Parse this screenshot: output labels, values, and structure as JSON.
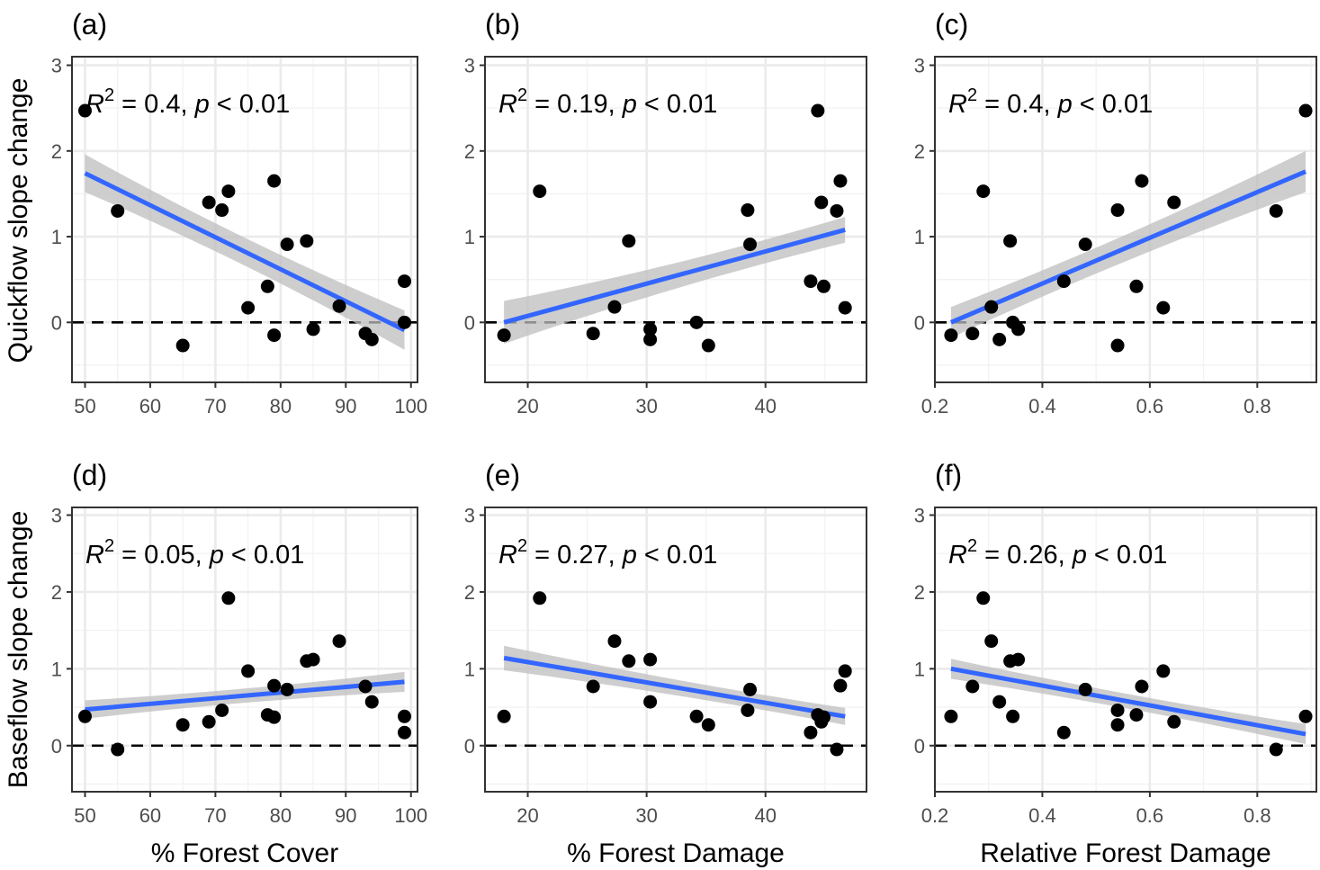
{
  "colors": {
    "fit_line": "#3366ff",
    "ci_band": "#bdbdbd",
    "points": "#000000",
    "grid_major": "#ebebeb",
    "grid_minor": "#f2f2f2",
    "border": "#333333"
  },
  "y_axis_titles": [
    "Quickflow slope change",
    "Baseflow slope change"
  ],
  "x_axis_titles": [
    "% Forest Cover",
    "% Forest Damage",
    "Relative Forest Damage"
  ],
  "chart_data": [
    {
      "type": "scatter",
      "panel": "(a)",
      "r2": "0.4",
      "p": "0.01",
      "xlabel": "",
      "ylabel": "Quickflow slope change",
      "xlim": [
        48,
        101
      ],
      "ylim": [
        -0.7,
        3.1
      ],
      "xticks": [
        50,
        60,
        70,
        80,
        90,
        100
      ],
      "xticklabels": [
        "50",
        "60",
        "70",
        "80",
        "90",
        "100"
      ],
      "yticks": [
        0,
        1,
        2,
        3
      ],
      "yticklabels": [
        "0",
        "1",
        "2",
        "3"
      ],
      "points": [
        [
          50,
          2.47
        ],
        [
          55,
          1.3
        ],
        [
          65,
          -0.27
        ],
        [
          69,
          1.4
        ],
        [
          71,
          1.31
        ],
        [
          72,
          1.53
        ],
        [
          75,
          0.17
        ],
        [
          78,
          0.42
        ],
        [
          79,
          1.65
        ],
        [
          79,
          -0.15
        ],
        [
          81,
          0.91
        ],
        [
          84,
          0.95
        ],
        [
          85,
          -0.08
        ],
        [
          89,
          0.19
        ],
        [
          93,
          -0.13
        ],
        [
          94,
          -0.2
        ],
        [
          99,
          0.48
        ],
        [
          99,
          0.0
        ]
      ],
      "fit": {
        "x": [
          50,
          99
        ],
        "y": [
          1.74,
          -0.09
        ]
      },
      "band_halfwidth": [
        0.22,
        0.1,
        0.23
      ]
    },
    {
      "type": "scatter",
      "panel": "(b)",
      "r2": "0.19",
      "p": "0.01",
      "xlabel": "",
      "ylabel": "",
      "xlim": [
        16.4,
        48.5
      ],
      "ylim": [
        -0.7,
        3.1
      ],
      "xticks": [
        20,
        30,
        40
      ],
      "xticklabels": [
        "20",
        "30",
        "40"
      ],
      "yticks": [
        0,
        1,
        2,
        3
      ],
      "yticklabels": [
        "0",
        "1",
        "2",
        "3"
      ],
      "points": [
        [
          18,
          -0.15
        ],
        [
          21,
          1.53
        ],
        [
          25.5,
          -0.13
        ],
        [
          27.3,
          0.18
        ],
        [
          28.5,
          0.95
        ],
        [
          30.3,
          -0.08
        ],
        [
          30.3,
          -0.2
        ],
        [
          34.2,
          0.0
        ],
        [
          35.2,
          -0.27
        ],
        [
          38.5,
          1.31
        ],
        [
          38.7,
          0.91
        ],
        [
          43.8,
          0.48
        ],
        [
          44.4,
          2.47
        ],
        [
          44.7,
          1.4
        ],
        [
          44.9,
          0.42
        ],
        [
          46,
          1.3
        ],
        [
          46.3,
          1.65
        ],
        [
          46.7,
          0.17
        ]
      ],
      "fit": {
        "x": [
          18,
          46.7
        ],
        "y": [
          0.0,
          1.08
        ]
      },
      "band_halfwidth": [
        0.25,
        0.1,
        0.15
      ]
    },
    {
      "type": "scatter",
      "panel": "(c)",
      "r2": "0.4",
      "p": "0.01",
      "xlabel": "",
      "ylabel": "",
      "xlim": [
        0.2,
        0.91
      ],
      "ylim": [
        -0.7,
        3.1
      ],
      "xticks": [
        0.2,
        0.4,
        0.6,
        0.8
      ],
      "xticklabels": [
        "0.2",
        "0.4",
        "0.6",
        "0.8"
      ],
      "yticks": [
        0,
        1,
        2,
        3
      ],
      "yticklabels": [
        "0",
        "1",
        "2",
        "3"
      ],
      "points": [
        [
          0.23,
          -0.15
        ],
        [
          0.27,
          -0.13
        ],
        [
          0.29,
          1.53
        ],
        [
          0.305,
          0.18
        ],
        [
          0.32,
          -0.2
        ],
        [
          0.34,
          0.95
        ],
        [
          0.345,
          0.0
        ],
        [
          0.355,
          -0.08
        ],
        [
          0.44,
          0.48
        ],
        [
          0.48,
          0.91
        ],
        [
          0.54,
          1.31
        ],
        [
          0.54,
          -0.27
        ],
        [
          0.575,
          0.42
        ],
        [
          0.585,
          1.65
        ],
        [
          0.625,
          0.17
        ],
        [
          0.645,
          1.4
        ],
        [
          0.835,
          1.3
        ],
        [
          0.89,
          2.47
        ]
      ],
      "fit": {
        "x": [
          0.23,
          0.89
        ],
        "y": [
          0.0,
          1.76
        ]
      },
      "band_halfwidth": [
        0.18,
        0.1,
        0.24
      ]
    },
    {
      "type": "scatter",
      "panel": "(d)",
      "r2": "0.05",
      "p": "0.01",
      "xlabel": "% Forest Cover",
      "ylabel": "Baseflow slope change",
      "xlim": [
        48,
        101
      ],
      "ylim": [
        -0.6,
        3.1
      ],
      "xticks": [
        50,
        60,
        70,
        80,
        90,
        100
      ],
      "xticklabels": [
        "50",
        "60",
        "70",
        "80",
        "90",
        "100"
      ],
      "yticks": [
        0,
        1,
        2,
        3
      ],
      "yticklabels": [
        "0",
        "1",
        "2",
        "3"
      ],
      "points": [
        [
          50,
          0.38
        ],
        [
          55,
          -0.05
        ],
        [
          65,
          0.27
        ],
        [
          69,
          0.31
        ],
        [
          71,
          0.46
        ],
        [
          72,
          1.92
        ],
        [
          75,
          0.97
        ],
        [
          78,
          0.4
        ],
        [
          79,
          0.78
        ],
        [
          79,
          0.37
        ],
        [
          81,
          0.73
        ],
        [
          84,
          1.1
        ],
        [
          85,
          1.12
        ],
        [
          89,
          1.36
        ],
        [
          93,
          0.77
        ],
        [
          94,
          0.57
        ],
        [
          99,
          0.38
        ],
        [
          99,
          0.17
        ]
      ],
      "fit": {
        "x": [
          50,
          99
        ],
        "y": [
          0.47,
          0.83
        ]
      },
      "band_halfwidth": [
        0.12,
        0.06,
        0.13
      ]
    },
    {
      "type": "scatter",
      "panel": "(e)",
      "r2": "0.27",
      "p": "0.01",
      "xlabel": "% Forest Damage",
      "ylabel": "",
      "xlim": [
        16.4,
        48.5
      ],
      "ylim": [
        -0.6,
        3.1
      ],
      "xticks": [
        20,
        30,
        40
      ],
      "xticklabels": [
        "20",
        "30",
        "40"
      ],
      "yticks": [
        0,
        1,
        2,
        3
      ],
      "yticklabels": [
        "0",
        "1",
        "2",
        "3"
      ],
      "points": [
        [
          18,
          0.38
        ],
        [
          21,
          1.92
        ],
        [
          25.5,
          0.77
        ],
        [
          27.3,
          1.36
        ],
        [
          28.5,
          1.1
        ],
        [
          30.3,
          1.12
        ],
        [
          30.3,
          0.57
        ],
        [
          34.2,
          0.38
        ],
        [
          35.2,
          0.27
        ],
        [
          38.5,
          0.46
        ],
        [
          38.7,
          0.73
        ],
        [
          43.8,
          0.17
        ],
        [
          44.4,
          0.4
        ],
        [
          44.7,
          0.31
        ],
        [
          44.9,
          0.37
        ],
        [
          46,
          -0.05
        ],
        [
          46.3,
          0.78
        ],
        [
          46.7,
          0.97
        ]
      ],
      "fit": {
        "x": [
          18,
          46.7
        ],
        "y": [
          1.14,
          0.38
        ]
      },
      "band_halfwidth": [
        0.16,
        0.07,
        0.11
      ]
    },
    {
      "type": "scatter",
      "panel": "(f)",
      "r2": "0.26",
      "p": "0.01",
      "xlabel": "Relative Forest Damage",
      "ylabel": "",
      "xlim": [
        0.2,
        0.91
      ],
      "ylim": [
        -0.6,
        3.1
      ],
      "xticks": [
        0.2,
        0.4,
        0.6,
        0.8
      ],
      "xticklabels": [
        "0.2",
        "0.4",
        "0.6",
        "0.8"
      ],
      "yticks": [
        0,
        1,
        2,
        3
      ],
      "yticklabels": [
        "0",
        "1",
        "2",
        "3"
      ],
      "points": [
        [
          0.23,
          0.38
        ],
        [
          0.27,
          0.77
        ],
        [
          0.29,
          1.92
        ],
        [
          0.305,
          1.36
        ],
        [
          0.32,
          0.57
        ],
        [
          0.34,
          1.1
        ],
        [
          0.345,
          0.38
        ],
        [
          0.355,
          1.12
        ],
        [
          0.44,
          0.17
        ],
        [
          0.48,
          0.73
        ],
        [
          0.54,
          0.46
        ],
        [
          0.54,
          0.27
        ],
        [
          0.575,
          0.4
        ],
        [
          0.585,
          0.77
        ],
        [
          0.625,
          0.97
        ],
        [
          0.645,
          0.31
        ],
        [
          0.835,
          -0.05
        ],
        [
          0.89,
          0.38
        ]
      ],
      "fit": {
        "x": [
          0.23,
          0.89
        ],
        "y": [
          1.0,
          0.15
        ]
      },
      "band_halfwidth": [
        0.13,
        0.06,
        0.13
      ]
    }
  ]
}
